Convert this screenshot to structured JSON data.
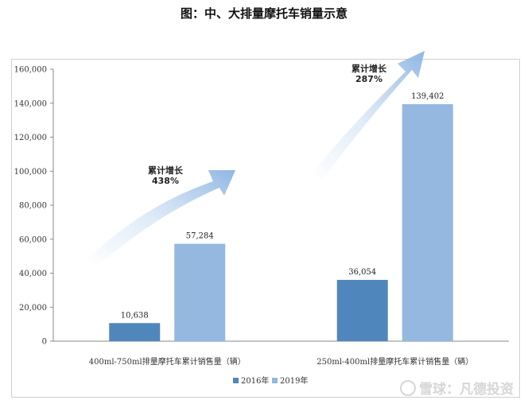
{
  "page": {
    "watermark": "雪球：凡德投资"
  },
  "chart_data": {
    "type": "bar",
    "title": "图：中、大排量摩托车销量示意",
    "categories": [
      "400ml-750ml排量摩托车累计销售量（辆）",
      "250ml-400ml排量摩托车累计销售量（辆）"
    ],
    "series": [
      {
        "name": "2016年",
        "values": [
          10638,
          36054
        ],
        "labels": [
          "10,638",
          "36,054"
        ],
        "color": "#4f87bd"
      },
      {
        "name": "2019年",
        "values": [
          57284,
          139402
        ],
        "labels": [
          "57,284",
          "139,402"
        ],
        "color": "#95b8e0"
      }
    ],
    "ylim": [
      0,
      160000
    ],
    "yticks": [
      "0",
      "20,000",
      "40,000",
      "60,000",
      "80,000",
      "100,000",
      "120,000",
      "140,000",
      "160,000"
    ],
    "grid": false,
    "legend": "bottom",
    "annotations": [
      {
        "line1": "累计增长",
        "line2": "438%"
      },
      {
        "line1": "累计增长",
        "line2": "287%"
      }
    ]
  }
}
